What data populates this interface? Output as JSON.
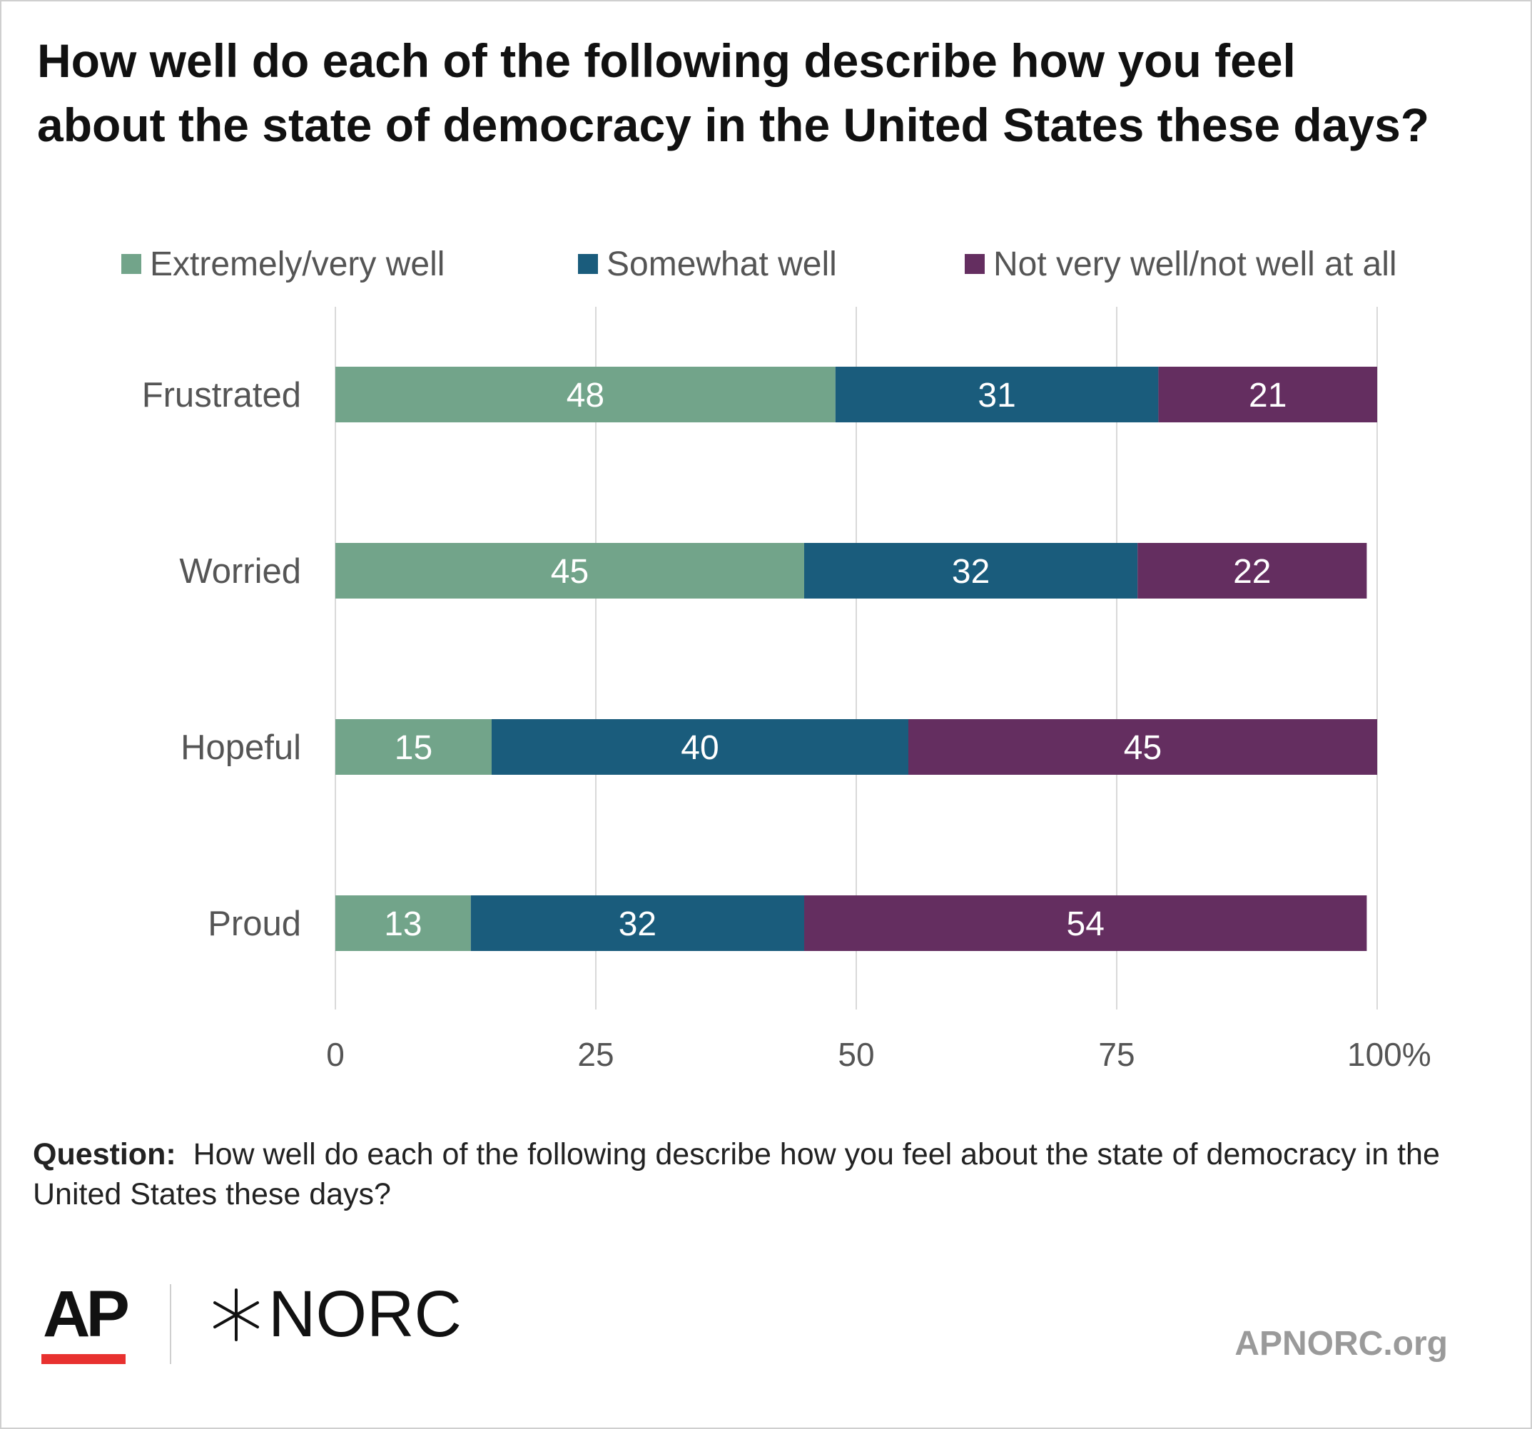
{
  "title": "How well do each of the following describe how you feel about the state of democracy in the United States these days?",
  "colors": {
    "extremely": "#72a48a",
    "somewhat": "#1a5c7c",
    "not_very": "#642e60",
    "grid": "#d9d9d9",
    "text": "#555555"
  },
  "legend": [
    {
      "label": "Extremely/very well",
      "color": "#72a48a"
    },
    {
      "label": "Somewhat well",
      "color": "#1a5c7c"
    },
    {
      "label": "Not very well/not well at all",
      "color": "#642e60"
    }
  ],
  "chart_data": {
    "type": "bar",
    "orientation": "horizontal",
    "stacked": true,
    "categories": [
      "Frustrated",
      "Worried",
      "Hopeful",
      "Proud"
    ],
    "series": [
      {
        "name": "Extremely/very well",
        "values": [
          48,
          45,
          15,
          13
        ]
      },
      {
        "name": "Somewhat well",
        "values": [
          31,
          32,
          40,
          32
        ]
      },
      {
        "name": "Not very well/not well at all",
        "values": [
          21,
          22,
          45,
          54
        ]
      }
    ],
    "xlim": [
      0,
      100
    ],
    "xticks": [
      0,
      25,
      50,
      75,
      100
    ],
    "xtick_labels": [
      "0",
      "25",
      "50",
      "75",
      "100%"
    ],
    "grid": true,
    "legend_position": "top"
  },
  "footnote": {
    "label": "Question:",
    "text": "How well do each of the following describe how you feel about the state of democracy in the United States these days?"
  },
  "branding": {
    "ap": "AP",
    "norc": "NORC",
    "site": "APNORC.org"
  }
}
